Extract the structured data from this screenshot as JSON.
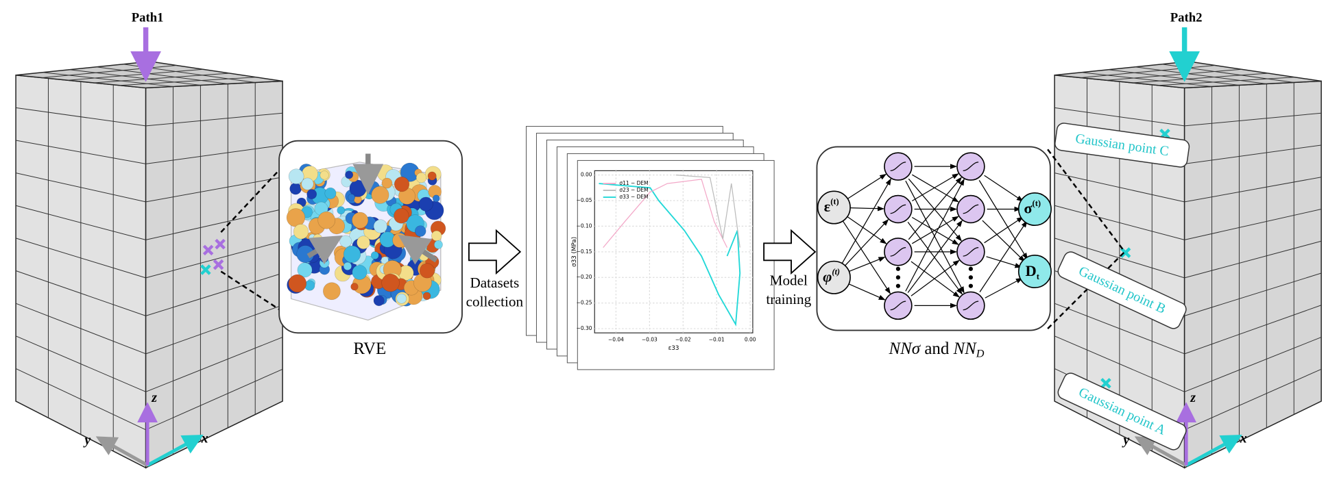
{
  "path1": {
    "label": "Path1",
    "axes": {
      "x": "x",
      "y": "y",
      "z": "z"
    }
  },
  "path2": {
    "label": "Path2",
    "axes": {
      "x": "x",
      "y": "y",
      "z": "z"
    }
  },
  "rve": {
    "label": "RVE"
  },
  "step1": {
    "line1": "Datasets",
    "line2": "collection"
  },
  "step2": {
    "line1": "Model",
    "line2": "training"
  },
  "plot": {
    "ylabel": "σ33 (MPa)",
    "xlabel": "ε33",
    "legend": [
      "σ11 − DEM",
      "σ23 − DEM",
      "σ33 − DEM"
    ],
    "yticks": [
      "0.00",
      "−0.05",
      "−0.10",
      "−0.15",
      "−0.20",
      "−0.25",
      "−0.30"
    ],
    "xticks": [
      "−0.04",
      "−0.03",
      "−0.02",
      "−0.01",
      "0.00"
    ]
  },
  "network": {
    "inputs": [
      {
        "symbol": "ε",
        "sup": "(t)"
      },
      {
        "symbol": "φ",
        "sup": "(t)"
      }
    ],
    "outputs": [
      {
        "symbol": "σ",
        "sup": "(t)"
      },
      {
        "symbol": "D",
        "sub": "t"
      }
    ],
    "caption": {
      "first": "NNσ",
      "and": "and",
      "second": "NN",
      "sub": "D"
    }
  },
  "gauss": [
    "Gaussian point C",
    "Gaussian point B",
    "Gaussian point A"
  ]
}
